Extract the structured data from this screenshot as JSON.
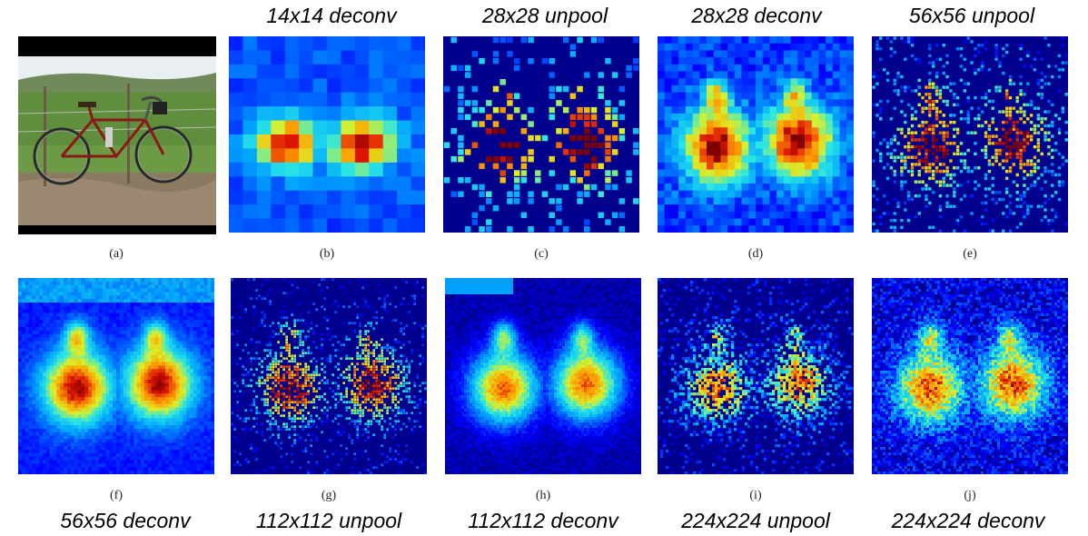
{
  "figure": {
    "top_labels": [
      "",
      "14x14 deconv",
      "28x28 unpool",
      "28x28 deconv",
      "56x56 unpool"
    ],
    "bottom_labels": [
      "56x56 deconv",
      "112x112 unpool",
      "112x112 deconv",
      "224x224 unpool",
      "224x224 deconv"
    ],
    "row1_sub": [
      "(a)",
      "(b)",
      "(c)",
      "(d)",
      "(e)"
    ],
    "row2_sub": [
      "(f)",
      "(g)",
      "(h)",
      "(i)",
      "(j)"
    ]
  },
  "colors": {
    "cold": "#00008a",
    "blue": "#0a3cff",
    "cyan": "#19c8ff",
    "yellow": "#f0f020",
    "orange": "#ff8a10",
    "red": "#d00000",
    "darkred": "#800000"
  },
  "panels": {
    "a": {
      "content": "bicycle-photo"
    },
    "b": {
      "grid": 14
    },
    "c": {
      "grid": 28
    },
    "d": {
      "grid": 28
    },
    "e": {
      "grid": 56
    },
    "f": {
      "grid": 56
    },
    "g": {
      "grid": 112
    },
    "h": {
      "grid": 112
    },
    "i": {
      "grid": 224
    },
    "j": {
      "grid": 224
    }
  }
}
